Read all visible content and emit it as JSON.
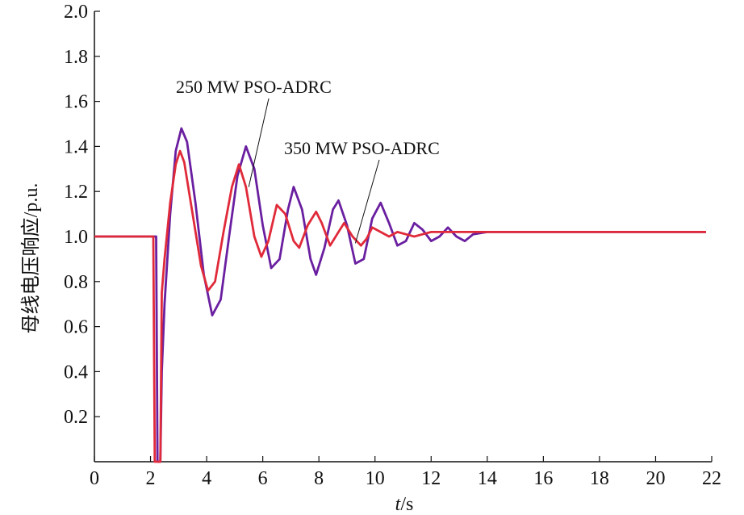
{
  "chart_data": {
    "type": "line",
    "title": "",
    "xlabel_italic": "t",
    "xlabel_unit": "/s",
    "ylabel": "母线电压响应/p.u.",
    "xlim": [
      0,
      22
    ],
    "ylim": [
      0,
      2.0
    ],
    "x_ticks": [
      "0",
      "2",
      "4",
      "6",
      "8",
      "10",
      "12",
      "14",
      "16",
      "18",
      "20",
      "22"
    ],
    "y_ticks": [
      "0.2",
      "0.4",
      "0.6",
      "0.8",
      "1.0",
      "1.2",
      "1.4",
      "1.6",
      "1.8",
      "2.0"
    ],
    "series": [
      {
        "name": "250 MW PSO-ADRC",
        "color": "#6a1fa0",
        "x": [
          0,
          2.2,
          2.25,
          2.35,
          2.4,
          2.5,
          2.7,
          2.9,
          3.1,
          3.3,
          3.6,
          3.9,
          4.2,
          4.5,
          4.8,
          5.1,
          5.4,
          5.7,
          6.0,
          6.3,
          6.6,
          6.9,
          7.1,
          7.4,
          7.7,
          7.9,
          8.2,
          8.5,
          8.7,
          9.0,
          9.3,
          9.6,
          9.9,
          10.2,
          10.5,
          10.8,
          11.1,
          11.4,
          11.7,
          12.0,
          12.3,
          12.6,
          12.9,
          13.2,
          13.5,
          14.0,
          15.0,
          16.0,
          18.0,
          20.0,
          21.8
        ],
        "values": [
          1.0,
          1.0,
          0.0,
          0.0,
          0.4,
          0.7,
          1.1,
          1.38,
          1.48,
          1.42,
          1.15,
          0.83,
          0.65,
          0.72,
          1.0,
          1.27,
          1.4,
          1.3,
          1.05,
          0.86,
          0.9,
          1.12,
          1.22,
          1.12,
          0.9,
          0.83,
          0.95,
          1.12,
          1.16,
          1.05,
          0.88,
          0.9,
          1.08,
          1.15,
          1.06,
          0.96,
          0.98,
          1.06,
          1.03,
          0.98,
          1.0,
          1.04,
          1.0,
          0.98,
          1.01,
          1.02,
          1.02,
          1.02,
          1.02,
          1.02,
          1.02
        ]
      },
      {
        "name": "350 MW PSO-ADRC",
        "color": "#e02a3a",
        "x": [
          0,
          2.1,
          2.15,
          2.35,
          2.4,
          2.5,
          2.7,
          2.9,
          3.05,
          3.2,
          3.5,
          3.8,
          4.05,
          4.3,
          4.6,
          4.9,
          5.15,
          5.4,
          5.7,
          5.95,
          6.2,
          6.5,
          6.8,
          7.1,
          7.3,
          7.6,
          7.9,
          8.1,
          8.4,
          8.7,
          8.9,
          9.2,
          9.5,
          9.7,
          9.9,
          10.2,
          10.5,
          10.8,
          11.1,
          11.4,
          11.7,
          12.0,
          12.5,
          13.0,
          14.0,
          15.0,
          16.0,
          18.0,
          20.0,
          21.8
        ],
        "values": [
          1.0,
          1.0,
          0.0,
          0.0,
          0.75,
          0.9,
          1.15,
          1.32,
          1.38,
          1.33,
          1.1,
          0.87,
          0.76,
          0.8,
          1.02,
          1.22,
          1.32,
          1.22,
          1.0,
          0.91,
          0.98,
          1.14,
          1.1,
          0.98,
          0.95,
          1.05,
          1.11,
          1.06,
          0.96,
          1.02,
          1.06,
          1.0,
          0.96,
          0.99,
          1.04,
          1.02,
          1.0,
          1.02,
          1.01,
          1.0,
          1.01,
          1.02,
          1.02,
          1.02,
          1.02,
          1.02,
          1.02,
          1.02,
          1.02,
          1.02
        ]
      },
      {
        "name": "",
        "color": "#3a55a8",
        "x": [
          8.7,
          9.0,
          9.3,
          9.6,
          9.9,
          10.2,
          10.5,
          10.8,
          11.1,
          11.4,
          11.7,
          12.0,
          12.3,
          12.6,
          12.9,
          13.2,
          13.5
        ],
        "values": [
          1.16,
          1.05,
          0.88,
          0.9,
          1.08,
          1.15,
          1.06,
          0.96,
          0.98,
          1.06,
          1.03,
          0.98,
          1.0,
          1.04,
          1.0,
          0.98,
          1.01
        ]
      }
    ],
    "annotations": [
      {
        "text": "250 MW PSO-ADRC",
        "points_to_x": 5.5,
        "points_to_y": 1.22
      },
      {
        "text": "350 MW PSO-ADRC",
        "points_to_x": 9.3,
        "points_to_y": 0.97
      }
    ]
  }
}
